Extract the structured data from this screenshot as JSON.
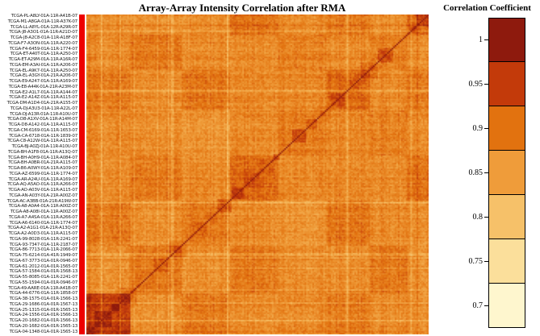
{
  "title": "Array-Array Intensity Correlation after RMA",
  "legend": {
    "title": "Correlation Coefficient",
    "ticks": [
      "1",
      "0.95",
      "0.9",
      "0.85",
      "0.8",
      "0.75",
      "0.7"
    ],
    "colors": [
      "#8E1A0D",
      "#C33A0A",
      "#E2720F",
      "#EF9C3A",
      "#F6C169",
      "#FBDF9B",
      "#FEF6CE"
    ]
  },
  "row_labels": [
    "TCGA-PL-A8LY-01A-11R-A41B-07",
    "TCGA-M1-A8GA-01A-11R-A37K-07",
    "TCGA-LL-A8YL-01A-12R-A29R-07",
    "TCGA-J8-A3O1-01A-11R-A21D-07",
    "TCGA-J8-A2C8-01A-11R-A18F-07",
    "TCGA-F7-A3ON-01A-11R-A220-07",
    "TCGA-F4-6459-01A-11R-1774-07",
    "TCGA-ET-A40T-01A-11R-A250-07",
    "TCGA-ET-A29M-01A-11R-A16R-07",
    "TCGA-EM-A3AI-01A-11R-A206-07",
    "TCGA-EL-A9K7-01A-11R-A250-07",
    "TCGA-EL-A3GY-01A-21R-A206-07",
    "TCGA-E9-A247-01A-11R-A169-07",
    "TCGA-E8-A44K-01A-21R-A23M-07",
    "TCGA-E2-A1L7-01A-11R-A144-07",
    "TCGA-E2-A14Z-01A-11R-A115-07",
    "TCGA-DM-A1D4-01A-21R-A155-07",
    "TCGA-DJ-A3U3-01A-11R-A22L-07",
    "TCGA-DJ-A13R-01A-11R-A10U-07",
    "TCGA-D8-A1XV-01A-11R-A14M-07",
    "TCGA-D8-A142-01A-11R-A115-07",
    "TCGA-CM-6169-01A-11R-1653-07",
    "TCGA-CA-6718-01A-11R-1839-07",
    "TCGA-C8-A12W-01A-11R-A115-07",
    "TCGA-BJ-A0ZJ-01A-11R-A10U-07",
    "TCGA-BH-A1F8-01A-11R-A13Q-07",
    "TCGA-BH-A0H9-01A-11R-A084-07",
    "TCGA-BH-A0BR-01A-21R-A115-07",
    "TCGA-B6-A0WY-01A-11R-A109-07",
    "TCGA-AZ-6599-01A-11R-1774-07",
    "TCGA-AR-A24U-01A-11R-A169-07",
    "TCGA-AQ-A5AO-01A-11R-A266-07",
    "TCGA-AO-A03V-01A-11R-A115-07",
    "TCGA-AN-A03Y-01A-21R-A00Z-07",
    "TCGA-AC-A3BB-01A-21R-A19W-07",
    "TCGA-A8-A0A4-01A-11R-A00Z-07",
    "TCGA-A8-A08I-01A-11R-A00Z-07",
    "TCGA-A7-A4SA-01A-11R-A266-07",
    "TCGA-A6-6140-01A-11R-1774-07",
    "TCGA-A2-A1G1-01A-21R-A13Q-07",
    "TCGA-A2-A0D3-01A-11R-A115-07",
    "TCGA-99-8028-01A-11R-2241-07",
    "TCGA-93-7347-01A-11R-2187-07",
    "TCGA-86-7713-01A-11R-2066-07",
    "TCGA-75-6214-01A-41R-1949-07",
    "TCGA-67-3773-01A-01R-0946-07",
    "TCGA-61-2012-01A-01R-1565-07",
    "TCGA-57-1584-01A-01R-1568-13",
    "TCGA-55-8085-01A-11R-2241-07",
    "TCGA-55-1594-01A-01R-0946-07",
    "TCGA-49-AARE-01A-11R-A41B-07",
    "TCGA-44-6776-01A-11R-1858-07",
    "TCGA-38-1575-01A-01R-1566-13",
    "TCGA-29-1686-01A-01R-1567-13",
    "TCGA-25-1315-01A-01R-1565-13",
    "TCGA-24-1556-01A-01R-1566-13",
    "TCGA-20-1682-01A-01R-1566-13",
    "TCGA-20-1682-01A-01R-1565-13",
    "TCGA-04-1348-01A-01R-1565-13"
  ],
  "chart_data": {
    "type": "heatmap",
    "title": "Array-Array Intensity Correlation after RMA",
    "legend_title": "Correlation Coefficient",
    "rows": "TCGA array sample IDs listed in row_labels (array-array correlation matrix; columns are the same arrays, column order reversed so the unit diagonal runs from top-right to bottom-left)",
    "value_range": [
      0.7,
      1.0
    ],
    "colorscale": [
      {
        "value": 1.0,
        "color": "#8E1A0D"
      },
      {
        "value": 0.95,
        "color": "#C33A0A"
      },
      {
        "value": 0.9,
        "color": "#E2720F"
      },
      {
        "value": 0.85,
        "color": "#EF9C3A"
      },
      {
        "value": 0.8,
        "color": "#F6C169"
      },
      {
        "value": 0.75,
        "color": "#FBDF9B"
      },
      {
        "value": 0.7,
        "color": "#FEF6CE"
      }
    ],
    "row_annotation_color": "#EE0000",
    "cell_values": "individual cell values not legible at source resolution; field is predominantly ~0.85-0.92 (orange) with blocky high-correlation clusters (~0.95-1.0, dark red), the strongest solid dark block at the bottom-left and dense dark texture at the top-right"
  }
}
